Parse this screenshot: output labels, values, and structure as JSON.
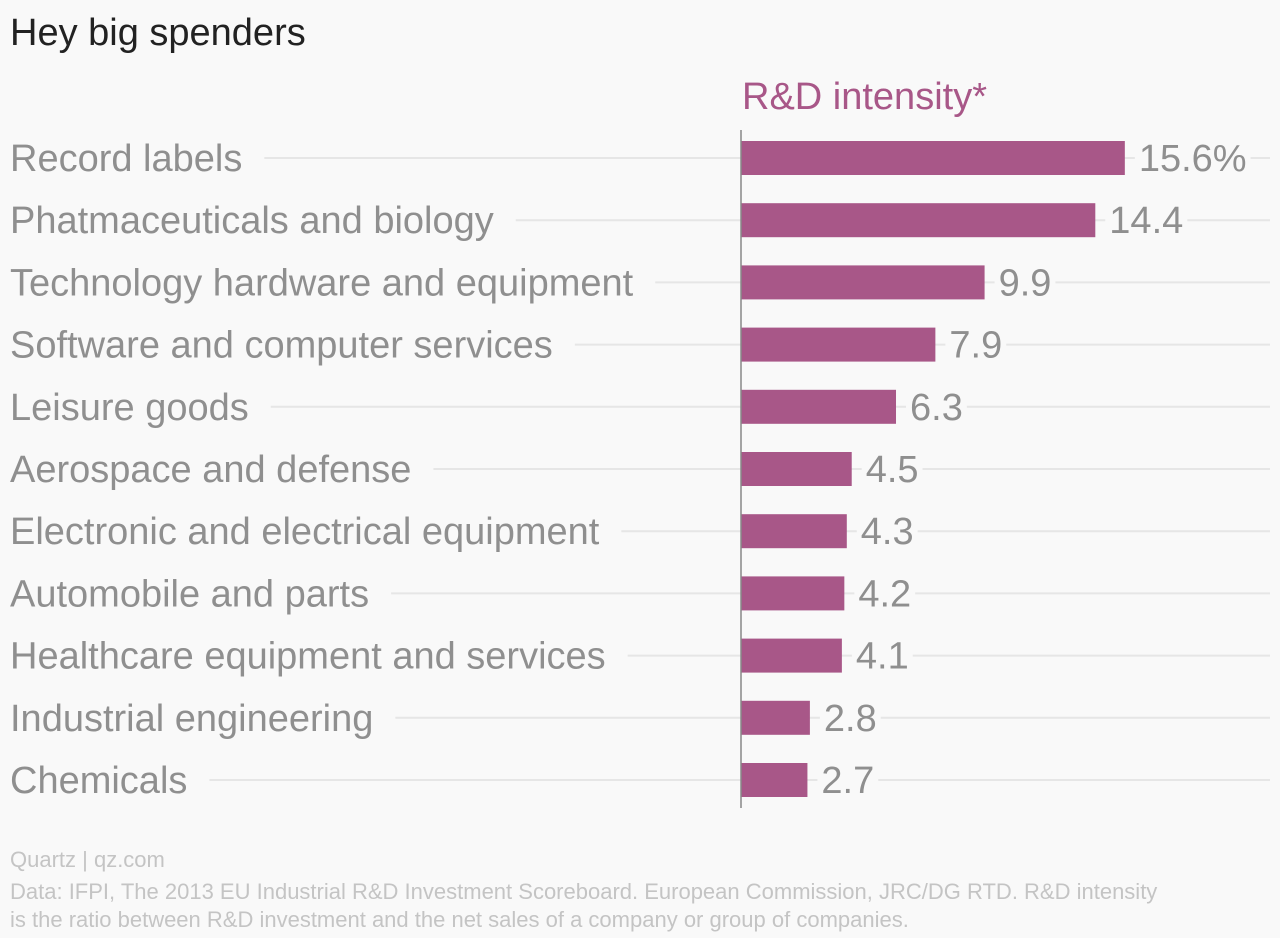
{
  "chart_data": {
    "type": "bar",
    "orientation": "horizontal",
    "title": "Hey big spenders",
    "series": [
      {
        "name": "R&D intensity*",
        "values": [
          15.6,
          14.4,
          9.9,
          7.9,
          6.3,
          4.5,
          4.3,
          4.2,
          4.1,
          2.8,
          2.7
        ]
      }
    ],
    "categories": [
      "Record labels",
      "Phatmaceuticals and biology",
      "Technology hardware and equipment",
      "Software and computer services",
      "Leisure goods",
      "Aerospace and defense",
      "Electronic and electrical equipment",
      "Automobile and parts",
      "Healthcare equipment and services",
      "Industrial engineering",
      "Chemicals"
    ],
    "value_labels": [
      "15.6%",
      "14.4",
      "9.9",
      "7.9",
      "6.3",
      "4.5",
      "4.3",
      "4.2",
      "4.1",
      "2.8",
      "2.7"
    ],
    "xlim": [
      0,
      21.5
    ],
    "grid": true,
    "bar_color": "#a85788",
    "label_color": "#8f8f8f",
    "series_label_color": "#a85788"
  },
  "footer": {
    "credit": "Quartz | qz.com",
    "note": "Data: IFPI, The 2013 EU Industrial R&D Investment Scoreboard. European Commission, JRC/DG RTD. R&D intensity is the ratio between R&D investment and the net sales of a company or group of companies."
  }
}
